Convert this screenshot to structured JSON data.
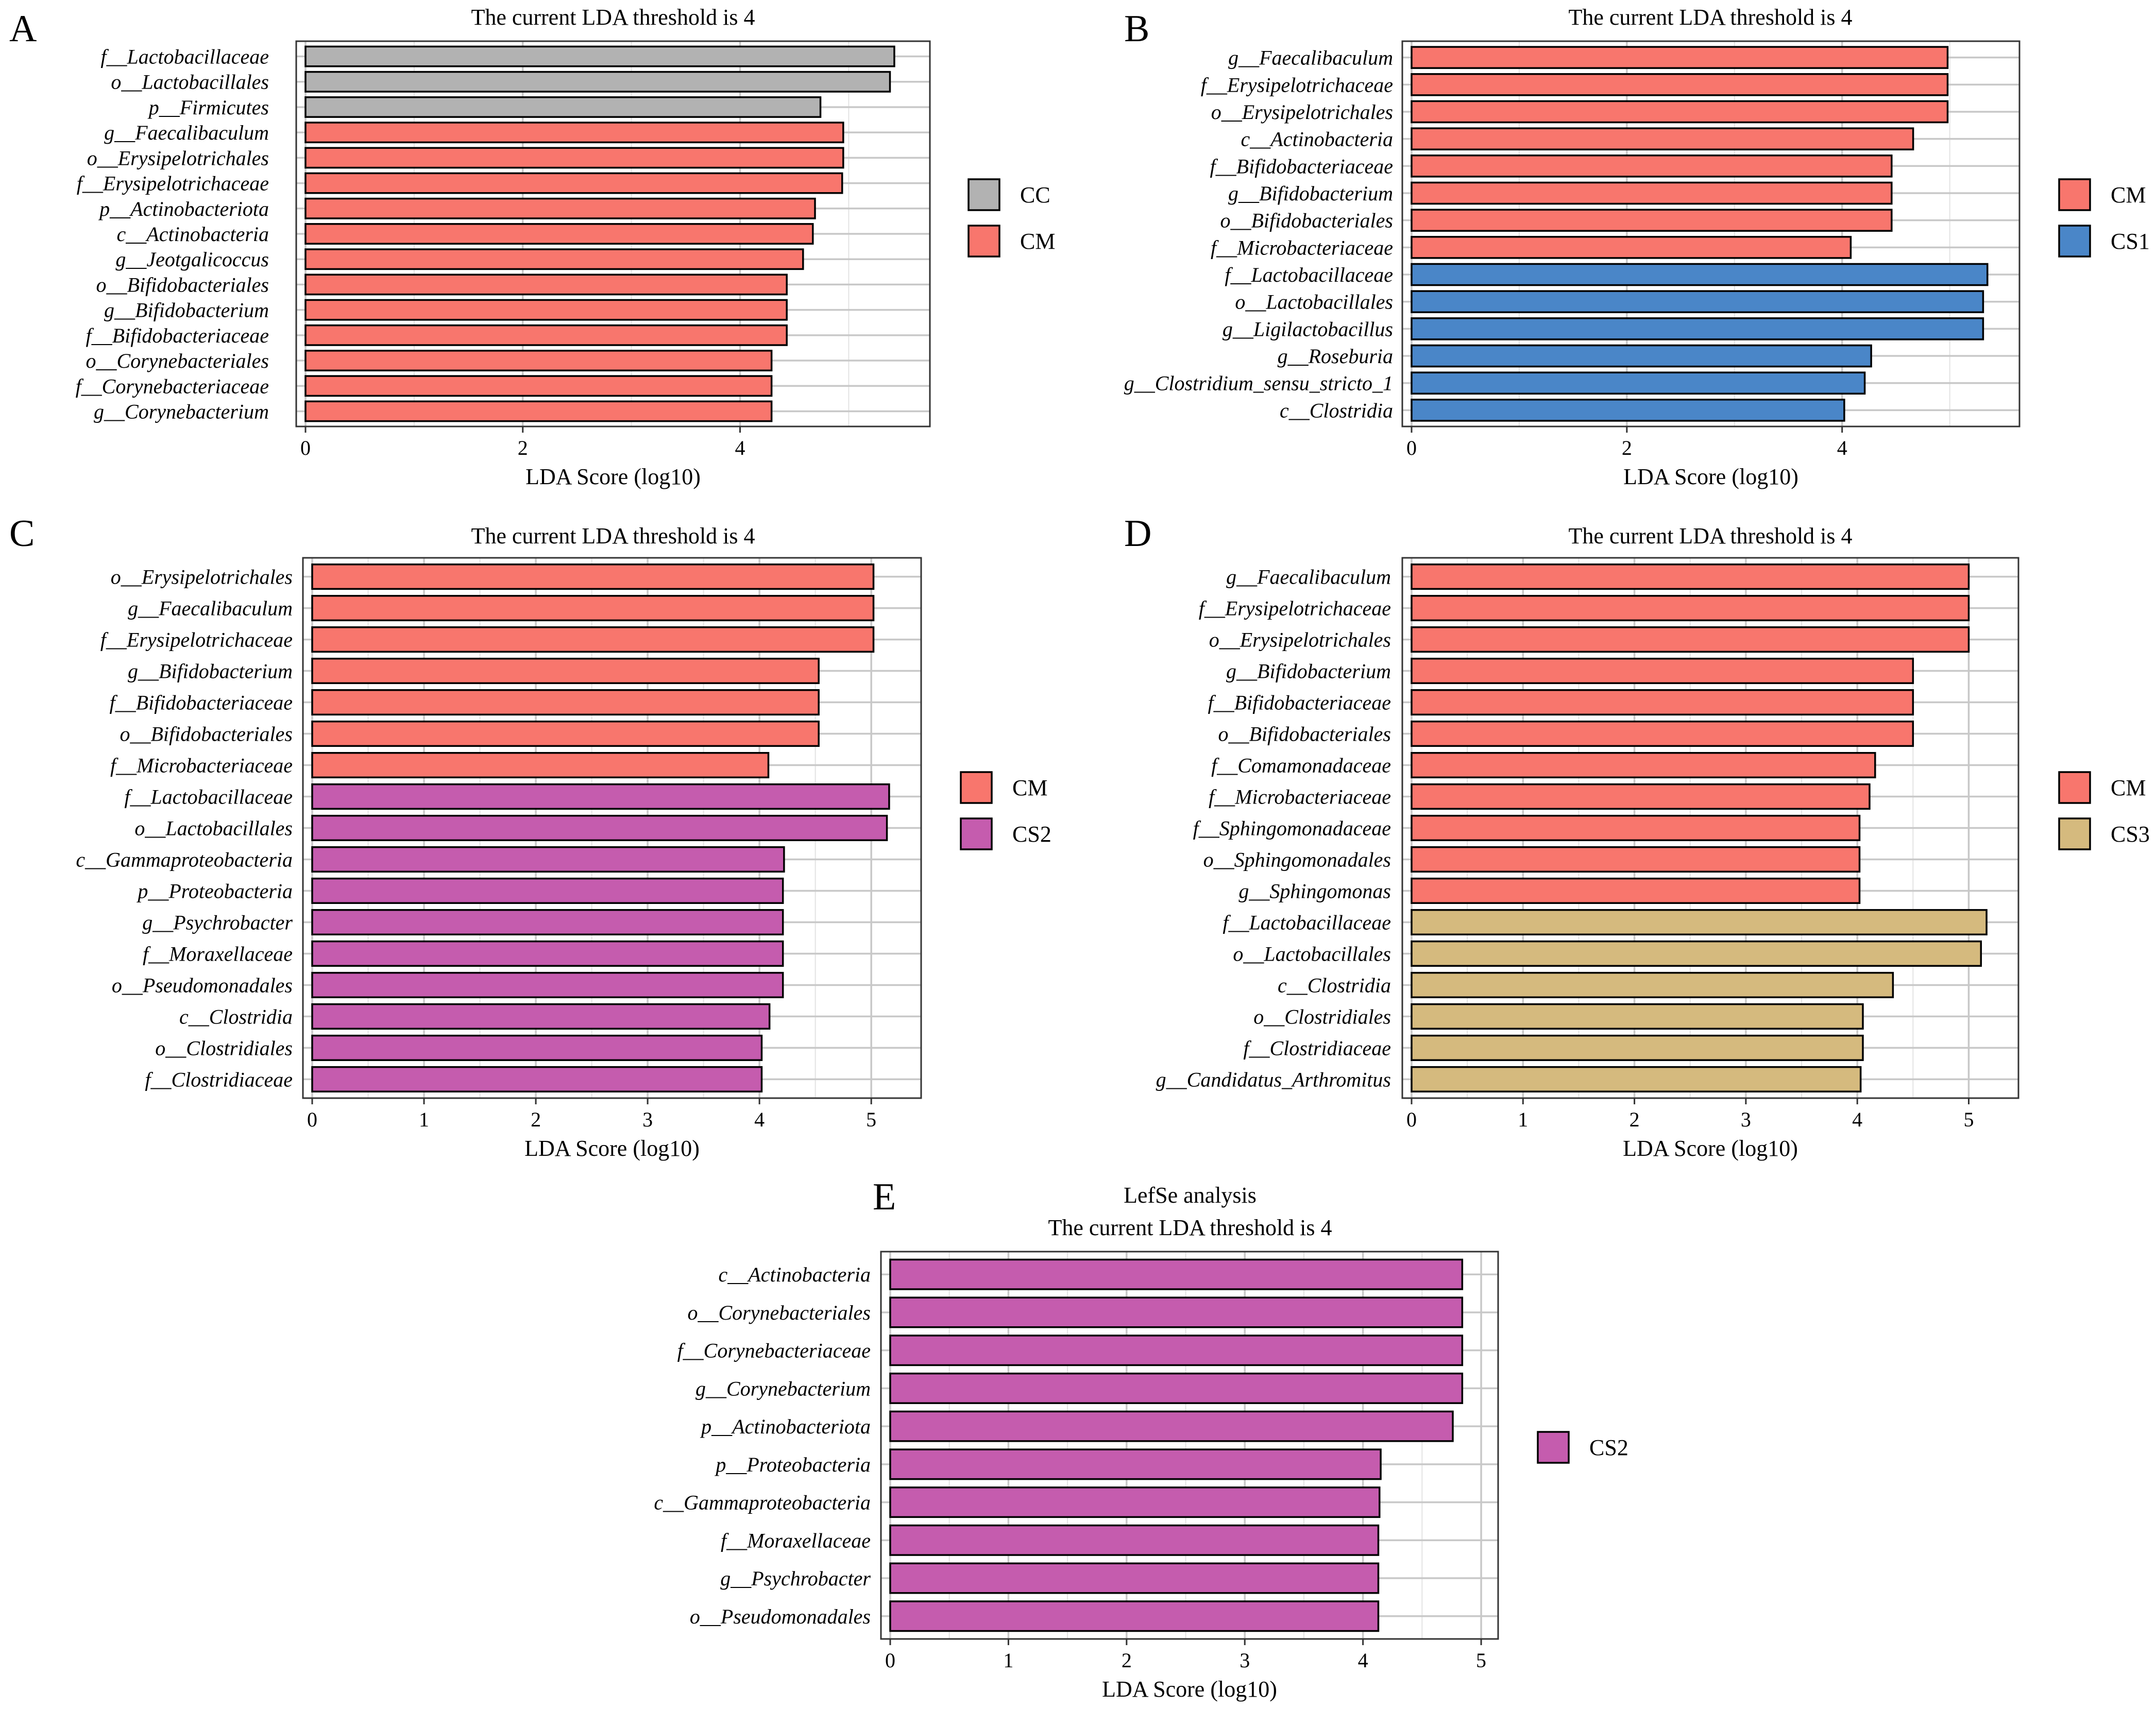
{
  "chart_data": [
    {
      "id": "A",
      "panel_letter": "A",
      "type": "bar",
      "orientation": "horizontal",
      "title": "The current LDA threshold is 4",
      "xlabel": "LDA Score (log10)",
      "xlim": [
        0,
        5.7
      ],
      "xticks": [
        0,
        2,
        4
      ],
      "legend": [
        {
          "group": "CC",
          "color": "#B2B2B2"
        },
        {
          "group": "CM",
          "color": "#F8766D"
        }
      ],
      "bars": [
        {
          "label": "f__Lactobacillaceae",
          "value": 5.42,
          "group": "CC"
        },
        {
          "label": "o__Lactobacillales",
          "value": 5.38,
          "group": "CC"
        },
        {
          "label": "p__Firmicutes",
          "value": 4.74,
          "group": "CC"
        },
        {
          "label": "g__Faecalibaculum",
          "value": 4.95,
          "group": "CM"
        },
        {
          "label": "o__Erysipelotrichales",
          "value": 4.95,
          "group": "CM"
        },
        {
          "label": "f__Erysipelotrichaceae",
          "value": 4.94,
          "group": "CM"
        },
        {
          "label": "p__Actinobacteriota",
          "value": 4.69,
          "group": "CM"
        },
        {
          "label": "c__Actinobacteria",
          "value": 4.67,
          "group": "CM"
        },
        {
          "label": "g__Jeotgalicoccus",
          "value": 4.58,
          "group": "CM"
        },
        {
          "label": "o__Bifidobacteriales",
          "value": 4.43,
          "group": "CM"
        },
        {
          "label": "g__Bifidobacterium",
          "value": 4.43,
          "group": "CM"
        },
        {
          "label": "f__Bifidobacteriaceae",
          "value": 4.43,
          "group": "CM"
        },
        {
          "label": "o__Corynebacteriales",
          "value": 4.29,
          "group": "CM"
        },
        {
          "label": "f__Corynebacteriaceae",
          "value": 4.29,
          "group": "CM"
        },
        {
          "label": "g__Corynebacterium",
          "value": 4.29,
          "group": "CM"
        }
      ]
    },
    {
      "id": "B",
      "panel_letter": "B",
      "type": "bar",
      "orientation": "horizontal",
      "title": "The current LDA threshold is 4",
      "xlabel": "LDA Score (log10)",
      "xlim": [
        0,
        5.6
      ],
      "xticks": [
        0,
        2,
        4
      ],
      "legend": [
        {
          "group": "CM",
          "color": "#F8766D"
        },
        {
          "group": "CS1",
          "color": "#4A86C8"
        }
      ],
      "bars": [
        {
          "label": "g__Faecalibaculum",
          "value": 4.98,
          "group": "CM"
        },
        {
          "label": "f__Erysipelotrichaceae",
          "value": 4.98,
          "group": "CM"
        },
        {
          "label": "o__Erysipelotrichales",
          "value": 4.98,
          "group": "CM"
        },
        {
          "label": "c__Actinobacteria",
          "value": 4.66,
          "group": "CM"
        },
        {
          "label": "f__Bifidobacteriaceae",
          "value": 4.46,
          "group": "CM"
        },
        {
          "label": "g__Bifidobacterium",
          "value": 4.46,
          "group": "CM"
        },
        {
          "label": "o__Bifidobacteriales",
          "value": 4.46,
          "group": "CM"
        },
        {
          "label": "f__Microbacteriaceae",
          "value": 4.08,
          "group": "CM"
        },
        {
          "label": "f__Lactobacillaceae",
          "value": 5.35,
          "group": "CS1"
        },
        {
          "label": "o__Lactobacillales",
          "value": 5.31,
          "group": "CS1"
        },
        {
          "label": "g__Ligilactobacillus",
          "value": 5.31,
          "group": "CS1"
        },
        {
          "label": "g__Roseburia",
          "value": 4.27,
          "group": "CS1"
        },
        {
          "label": "g__Clostridium_sensu_stricto_1",
          "value": 4.21,
          "group": "CS1"
        },
        {
          "label": "c__Clostridia",
          "value": 4.02,
          "group": "CS1"
        }
      ]
    },
    {
      "id": "C",
      "panel_letter": "C",
      "type": "bar",
      "orientation": "horizontal",
      "title": "The current LDA threshold is 4",
      "xlabel": "LDA Score (log10)",
      "xlim": [
        0,
        5.4
      ],
      "xticks": [
        0,
        1,
        2,
        3,
        4,
        5
      ],
      "legend": [
        {
          "group": "CM",
          "color": "#F8766D"
        },
        {
          "group": "CS2",
          "color": "#C55CAE"
        }
      ],
      "bars": [
        {
          "label": "o__Erysipelotrichales",
          "value": 5.02,
          "group": "CM"
        },
        {
          "label": "g__Faecalibaculum",
          "value": 5.02,
          "group": "CM"
        },
        {
          "label": "f__Erysipelotrichaceae",
          "value": 5.02,
          "group": "CM"
        },
        {
          "label": "g__Bifidobacterium",
          "value": 4.53,
          "group": "CM"
        },
        {
          "label": "f__Bifidobacteriaceae",
          "value": 4.53,
          "group": "CM"
        },
        {
          "label": "o__Bifidobacteriales",
          "value": 4.53,
          "group": "CM"
        },
        {
          "label": "f__Microbacteriaceae",
          "value": 4.08,
          "group": "CM"
        },
        {
          "label": "f__Lactobacillaceae",
          "value": 5.16,
          "group": "CS2"
        },
        {
          "label": "o__Lactobacillales",
          "value": 5.14,
          "group": "CS2"
        },
        {
          "label": "c__Gammaproteobacteria",
          "value": 4.22,
          "group": "CS2"
        },
        {
          "label": "p__Proteobacteria",
          "value": 4.21,
          "group": "CS2"
        },
        {
          "label": "g__Psychrobacter",
          "value": 4.21,
          "group": "CS2"
        },
        {
          "label": "f__Moraxellaceae",
          "value": 4.21,
          "group": "CS2"
        },
        {
          "label": "o__Pseudomonadales",
          "value": 4.21,
          "group": "CS2"
        },
        {
          "label": "c__Clostridia",
          "value": 4.09,
          "group": "CS2"
        },
        {
          "label": "o__Clostridiales",
          "value": 4.02,
          "group": "CS2"
        },
        {
          "label": "f__Clostridiaceae",
          "value": 4.02,
          "group": "CS2"
        }
      ]
    },
    {
      "id": "D",
      "panel_letter": "D",
      "type": "bar",
      "orientation": "horizontal",
      "title": "The current LDA threshold is 4",
      "xlabel": "LDA Score (log10)",
      "xlim": [
        0,
        5.4
      ],
      "xticks": [
        0,
        1,
        2,
        3,
        4,
        5
      ],
      "legend": [
        {
          "group": "CM",
          "color": "#F8766D"
        },
        {
          "group": "CS3",
          "color": "#D5BA7E"
        }
      ],
      "bars": [
        {
          "label": "g__Faecalibaculum",
          "value": 5.0,
          "group": "CM"
        },
        {
          "label": "f__Erysipelotrichaceae",
          "value": 5.0,
          "group": "CM"
        },
        {
          "label": "o__Erysipelotrichales",
          "value": 5.0,
          "group": "CM"
        },
        {
          "label": "g__Bifidobacterium",
          "value": 4.5,
          "group": "CM"
        },
        {
          "label": "f__Bifidobacteriaceae",
          "value": 4.5,
          "group": "CM"
        },
        {
          "label": "o__Bifidobacteriales",
          "value": 4.5,
          "group": "CM"
        },
        {
          "label": "f__Comamonadaceae",
          "value": 4.16,
          "group": "CM"
        },
        {
          "label": "f__Microbacteriaceae",
          "value": 4.11,
          "group": "CM"
        },
        {
          "label": "f__Sphingomonadaceae",
          "value": 4.02,
          "group": "CM"
        },
        {
          "label": "o__Sphingomonadales",
          "value": 4.02,
          "group": "CM"
        },
        {
          "label": "g__Sphingomonas",
          "value": 4.02,
          "group": "CM"
        },
        {
          "label": "f__Lactobacillaceae",
          "value": 5.16,
          "group": "CS3"
        },
        {
          "label": "o__Lactobacillales",
          "value": 5.11,
          "group": "CS3"
        },
        {
          "label": "c__Clostridia",
          "value": 4.32,
          "group": "CS3"
        },
        {
          "label": "o__Clostridiales",
          "value": 4.05,
          "group": "CS3"
        },
        {
          "label": "f__Clostridiaceae",
          "value": 4.05,
          "group": "CS3"
        },
        {
          "label": "g__Candidatus_Arthromitus",
          "value": 4.03,
          "group": "CS3"
        }
      ]
    },
    {
      "id": "E",
      "panel_letter": "E",
      "type": "bar",
      "orientation": "horizontal",
      "supertitle": "LefSe analysis",
      "title": "The current LDA threshold is 4",
      "xlabel": "LDA Score (log10)",
      "xlim": [
        0,
        5.1
      ],
      "xticks": [
        0,
        1,
        2,
        3,
        4,
        5
      ],
      "legend": [
        {
          "group": "CS2",
          "color": "#C55CAE"
        }
      ],
      "bars": [
        {
          "label": "c__Actinobacteria",
          "value": 4.84,
          "group": "CS2"
        },
        {
          "label": "o__Corynebacteriales",
          "value": 4.84,
          "group": "CS2"
        },
        {
          "label": "f__Corynebacteriaceae",
          "value": 4.84,
          "group": "CS2"
        },
        {
          "label": "g__Corynebacterium",
          "value": 4.84,
          "group": "CS2"
        },
        {
          "label": "p__Actinobacteriota",
          "value": 4.76,
          "group": "CS2"
        },
        {
          "label": "p__Proteobacteria",
          "value": 4.15,
          "group": "CS2"
        },
        {
          "label": "c__Gammaproteobacteria",
          "value": 4.14,
          "group": "CS2"
        },
        {
          "label": "f__Moraxellaceae",
          "value": 4.13,
          "group": "CS2"
        },
        {
          "label": "g__Psychrobacter",
          "value": 4.13,
          "group": "CS2"
        },
        {
          "label": "o__Pseudomonadales",
          "value": 4.13,
          "group": "CS2"
        }
      ]
    }
  ]
}
